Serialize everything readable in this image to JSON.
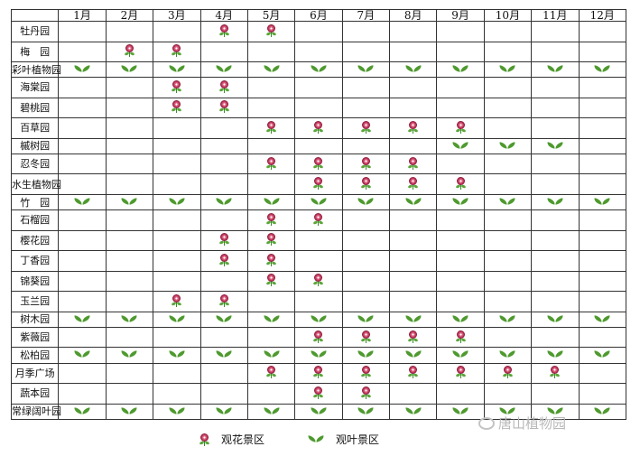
{
  "months": [
    "1月",
    "2月",
    "3月",
    "4月",
    "5月",
    "6月",
    "7月",
    "8月",
    "9月",
    "10月",
    "11月",
    "12月"
  ],
  "rows": [
    {
      "name": "牡丹园",
      "cells": [
        "",
        "",
        "",
        "flower",
        "flower",
        "",
        "",
        "",
        "",
        "",
        "",
        ""
      ]
    },
    {
      "name": "梅　园",
      "cells": [
        "",
        "flower",
        "flower",
        "",
        "",
        "",
        "",
        "",
        "",
        "",
        "",
        ""
      ]
    },
    {
      "name": "彩叶植物园",
      "cells": [
        "leaf",
        "leaf",
        "leaf",
        "leaf",
        "leaf",
        "leaf",
        "leaf",
        "leaf",
        "leaf",
        "leaf",
        "leaf",
        "leaf"
      ]
    },
    {
      "name": "海棠园",
      "cells": [
        "",
        "",
        "flower",
        "flower",
        "",
        "",
        "",
        "",
        "",
        "",
        "",
        ""
      ]
    },
    {
      "name": "碧桃园",
      "cells": [
        "",
        "",
        "flower",
        "flower",
        "",
        "",
        "",
        "",
        "",
        "",
        "",
        ""
      ]
    },
    {
      "name": "百草园",
      "cells": [
        "",
        "",
        "",
        "",
        "flower",
        "flower",
        "flower",
        "flower",
        "flower",
        "",
        "",
        ""
      ]
    },
    {
      "name": "槭树园",
      "cells": [
        "",
        "",
        "",
        "",
        "",
        "",
        "",
        "",
        "leaf",
        "leaf",
        "leaf",
        ""
      ]
    },
    {
      "name": "忍冬园",
      "cells": [
        "",
        "",
        "",
        "",
        "flower",
        "flower",
        "flower",
        "flower",
        "",
        "",
        "",
        ""
      ]
    },
    {
      "name": "水生植物园",
      "cells": [
        "",
        "",
        "",
        "",
        "",
        "flower",
        "flower",
        "flower",
        "flower",
        "",
        "",
        ""
      ]
    },
    {
      "name": "竹　园",
      "cells": [
        "leaf",
        "leaf",
        "leaf",
        "leaf",
        "leaf",
        "leaf",
        "leaf",
        "leaf",
        "leaf",
        "leaf",
        "leaf",
        "leaf"
      ]
    },
    {
      "name": "石榴园",
      "cells": [
        "",
        "",
        "",
        "",
        "flower",
        "flower",
        "",
        "",
        "",
        "",
        "",
        ""
      ]
    },
    {
      "name": "樱花园",
      "cells": [
        "",
        "",
        "",
        "flower",
        "flower",
        "",
        "",
        "",
        "",
        "",
        "",
        ""
      ]
    },
    {
      "name": "丁香园",
      "cells": [
        "",
        "",
        "",
        "flower",
        "flower",
        "",
        "",
        "",
        "",
        "",
        "",
        ""
      ]
    },
    {
      "name": "锦葵园",
      "cells": [
        "",
        "",
        "",
        "",
        "flower",
        "flower",
        "",
        "",
        "",
        "",
        "",
        ""
      ]
    },
    {
      "name": "玉兰园",
      "cells": [
        "",
        "",
        "flower",
        "flower",
        "",
        "",
        "",
        "",
        "",
        "",
        "",
        ""
      ]
    },
    {
      "name": "树木园",
      "cells": [
        "leaf",
        "leaf",
        "leaf",
        "leaf",
        "leaf",
        "leaf",
        "leaf",
        "leaf",
        "leaf",
        "leaf",
        "leaf",
        "leaf"
      ]
    },
    {
      "name": "紫薇园",
      "cells": [
        "",
        "",
        "",
        "",
        "",
        "flower",
        "flower",
        "flower",
        "flower",
        "",
        "",
        ""
      ]
    },
    {
      "name": "松柏园",
      "cells": [
        "leaf",
        "leaf",
        "leaf",
        "leaf",
        "leaf",
        "leaf",
        "leaf",
        "leaf",
        "leaf",
        "leaf",
        "leaf",
        "leaf"
      ]
    },
    {
      "name": "月季广场",
      "cells": [
        "",
        "",
        "",
        "",
        "flower",
        "flower",
        "flower",
        "flower",
        "flower",
        "flower",
        "flower",
        ""
      ]
    },
    {
      "name": "蔬本园",
      "cells": [
        "",
        "",
        "",
        "",
        "",
        "flower",
        "flower",
        "",
        "",
        "",
        "",
        ""
      ]
    },
    {
      "name": "常绿阔叶园",
      "cells": [
        "leaf",
        "leaf",
        "leaf",
        "leaf",
        "leaf",
        "leaf",
        "leaf",
        "leaf",
        "leaf",
        "leaf",
        "leaf",
        "leaf"
      ]
    }
  ],
  "legend": {
    "flower_label": "观花景区",
    "flower_icon": "flower-icon",
    "leaf_label": "观叶景区",
    "leaf_icon": "leaf-icon"
  },
  "watermark": {
    "text": "唐山植物园",
    "icon": "wechat-icon"
  },
  "colors": {
    "flower": "#c23b5c",
    "leaf": "#4e9a2e",
    "grid": "#333333"
  }
}
